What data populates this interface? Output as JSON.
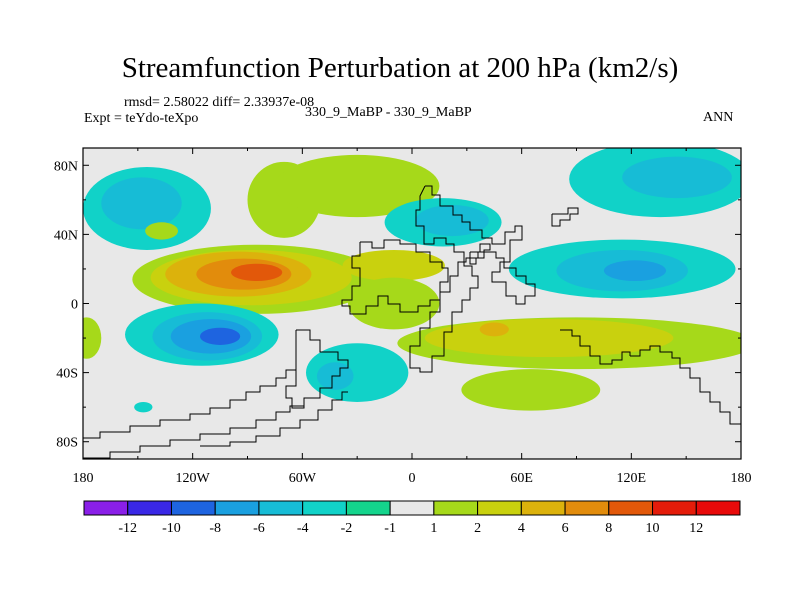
{
  "title": "Streamfunction Perturbation at 200 hPa (km2/s)",
  "stats_text": "rmsd= 2.58022 diff= 2.33937e-08",
  "experiment_text": "Expt = teYdo-teXpo",
  "case_text": "330_9_MaBP - 330_9_MaBP",
  "season_text": "ANN",
  "chart_data": {
    "type": "heatmap",
    "title": "Streamfunction Perturbation at 200 hPa (km2/s)",
    "xlim": [
      -180,
      180
    ],
    "ylim": [
      -90,
      90
    ],
    "x_ticks": [
      {
        "value": -180,
        "label": "180"
      },
      {
        "value": -120,
        "label": "120W"
      },
      {
        "value": -60,
        "label": "60W"
      },
      {
        "value": 0,
        "label": "0"
      },
      {
        "value": 60,
        "label": "60E"
      },
      {
        "value": 120,
        "label": "120E"
      },
      {
        "value": 180,
        "label": "180"
      }
    ],
    "y_ticks": [
      {
        "value": 80,
        "label": "80N"
      },
      {
        "value": 40,
        "label": "40N"
      },
      {
        "value": 0,
        "label": "0"
      },
      {
        "value": -40,
        "label": "40S"
      },
      {
        "value": -80,
        "label": "80S"
      }
    ],
    "colorbar": {
      "labels": [
        "-12",
        "-10",
        "-8",
        "-6",
        "-4",
        "-2",
        "-1",
        "1",
        "2",
        "4",
        "6",
        "8",
        "10",
        "12"
      ],
      "colors": [
        "#8a1fe8",
        "#3a28e6",
        "#1e64e0",
        "#1aa0e0",
        "#17bcd6",
        "#11d2c8",
        "#14d48c",
        "#e8e8e8",
        "#a6d91a",
        "#c9d10e",
        "#dcb20c",
        "#e28c0c",
        "#e2580a",
        "#e41c0a",
        "#e80a0a"
      ]
    },
    "background": "#e8e8e8",
    "features": [
      {
        "name": "north-america-negative",
        "lon": -145,
        "lat": 55,
        "rx": 35,
        "ry": 24,
        "level": -2
      },
      {
        "name": "north-america-negative-core",
        "lon": -148,
        "lat": 58,
        "rx": 22,
        "ry": 15,
        "level": -4
      },
      {
        "name": "arctic-positive-west",
        "lon": -70,
        "lat": 60,
        "rx": 20,
        "ry": 22,
        "level": 1
      },
      {
        "name": "arctic-positive-center",
        "lon": -30,
        "lat": 68,
        "rx": 45,
        "ry": 18,
        "level": 1
      },
      {
        "name": "europe-negative",
        "lon": 17,
        "lat": 47,
        "rx": 32,
        "ry": 14,
        "level": -2
      },
      {
        "name": "europe-negative-core",
        "lon": 22,
        "lat": 48,
        "rx": 20,
        "ry": 9,
        "level": -4
      },
      {
        "name": "north-pacific-negative",
        "lon": 136,
        "lat": 72,
        "rx": 50,
        "ry": 22,
        "level": -2
      },
      {
        "name": "north-pacific-negative-core",
        "lon": 145,
        "lat": 73,
        "rx": 30,
        "ry": 12,
        "level": -4
      },
      {
        "name": "small-positive-patch",
        "lon": -137,
        "lat": 42,
        "rx": 9,
        "ry": 5,
        "level": 1
      },
      {
        "name": "subtropical-positive-band",
        "lon": -85,
        "lat": 14,
        "rx": 68,
        "ry": 20,
        "level": 1
      },
      {
        "name": "subtropical-positive-level2",
        "lon": -88,
        "lat": 15,
        "rx": 55,
        "ry": 16,
        "level": 2
      },
      {
        "name": "subtropical-positive-level4",
        "lon": -95,
        "lat": 17,
        "rx": 40,
        "ry": 13,
        "level": 4
      },
      {
        "name": "subtropical-positive-level6",
        "lon": -92,
        "lat": 17,
        "rx": 26,
        "ry": 9,
        "level": 6
      },
      {
        "name": "subtropical-positive-level8",
        "lon": -85,
        "lat": 18,
        "rx": 14,
        "ry": 5,
        "level": 8
      },
      {
        "name": "atlantic-positive",
        "lon": -10,
        "lat": 22,
        "rx": 28,
        "ry": 9,
        "level": 2
      },
      {
        "name": "central-positive",
        "lon": -10,
        "lat": 0,
        "rx": 25,
        "ry": 15,
        "level": 1
      },
      {
        "name": "asia-negative",
        "lon": 115,
        "lat": 20,
        "rx": 62,
        "ry": 17,
        "level": -2
      },
      {
        "name": "asia-negative-core",
        "lon": 115,
        "lat": 19,
        "rx": 36,
        "ry": 12,
        "level": -4
      },
      {
        "name": "asia-negative-center",
        "lon": 122,
        "lat": 19,
        "rx": 17,
        "ry": 6,
        "level": -6
      },
      {
        "name": "south-pacific-negative",
        "lon": -115,
        "lat": -18,
        "rx": 42,
        "ry": 18,
        "level": -2
      },
      {
        "name": "south-pacific-negative-core",
        "lon": -112,
        "lat": -19,
        "rx": 30,
        "ry": 14,
        "level": -4
      },
      {
        "name": "south-pacific-negative-level6",
        "lon": -110,
        "lat": -19,
        "rx": 22,
        "ry": 10,
        "level": -6
      },
      {
        "name": "south-pacific-negative-center",
        "lon": -105,
        "lat": -19,
        "rx": 11,
        "ry": 5,
        "level": -8
      },
      {
        "name": "south-atlantic-negative",
        "lon": -30,
        "lat": -40,
        "rx": 28,
        "ry": 17,
        "level": -2
      },
      {
        "name": "south-atlantic-negative-core",
        "lon": -42,
        "lat": -42,
        "rx": 10,
        "ry": 8,
        "level": -4
      },
      {
        "name": "southern-positive-band",
        "lon": 90,
        "lat": -23,
        "rx": 98,
        "ry": 15,
        "level": 1
      },
      {
        "name": "southern-positive-level2",
        "lon": 75,
        "lat": -20,
        "rx": 68,
        "ry": 11,
        "level": 2
      },
      {
        "name": "southern-positive-level4",
        "lon": 45,
        "lat": -15,
        "rx": 8,
        "ry": 4,
        "level": 4
      },
      {
        "name": "west-edge-positive",
        "lon": -178,
        "lat": -20,
        "rx": 8,
        "ry": 12,
        "level": 1
      },
      {
        "name": "southern-positive-lobe",
        "lon": 65,
        "lat": -50,
        "rx": 38,
        "ry": 12,
        "level": 1
      },
      {
        "name": "small-negative-patch",
        "lon": -147,
        "lat": -60,
        "rx": 5,
        "ry": 3,
        "level": -2
      }
    ]
  }
}
